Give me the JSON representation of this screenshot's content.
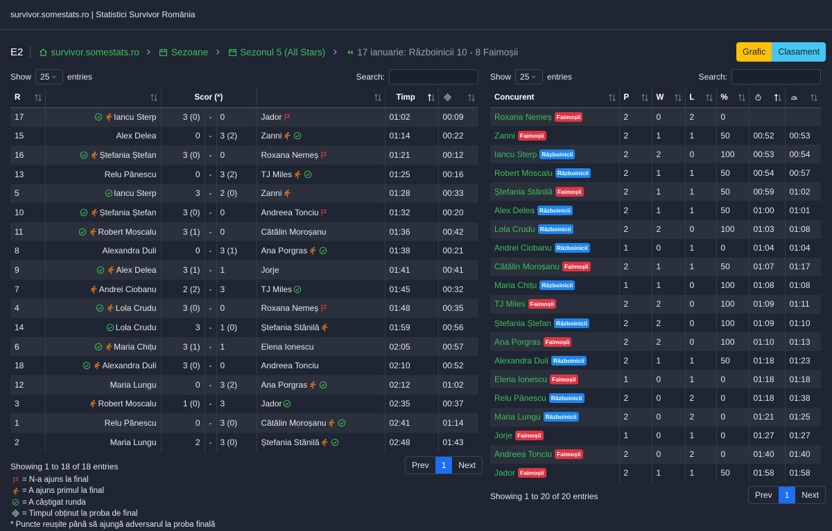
{
  "header": {
    "title": "survivor.somestats.ro | Statistici Survivor România"
  },
  "breadcrumb": {
    "episode": "E2",
    "items": [
      "survivor.somestats.ro",
      "Sezoane",
      "Sezonul 5 (All Stars)",
      "17 ianuarie: Războinicii 10 - 8 Faimoșii"
    ]
  },
  "buttons": [
    "Grafic",
    "Clasament"
  ],
  "duels": {
    "show": "Show",
    "length": "25",
    "entries": "entries",
    "search": "Search:",
    "columns": {
      "r": "R",
      "score": "Scor (*)",
      "time": "Timp"
    },
    "separator": "-",
    "rows": [
      [
        17,
        "Iancu Sterp",
        "3 (0)",
        "0",
        "Jador",
        "01:02",
        "00:09"
      ],
      [
        15,
        "Alex Delea",
        "0",
        "3 (2)",
        "Zanni",
        "01:14",
        "00:22"
      ],
      [
        16,
        "Ștefania Ștefan",
        "3 (0)",
        "0",
        "Roxana Nemeș",
        "01:21",
        "00:12"
      ],
      [
        13,
        "Relu Pănescu",
        "0",
        "3 (2)",
        "TJ Miles",
        "01:25",
        "00:16"
      ],
      [
        5,
        "Iancu Sterp",
        "3",
        "2 (0)",
        "Zanni",
        "01:28",
        "00:33"
      ],
      [
        10,
        "Ștefania Ștefan",
        "3 (0)",
        "0",
        "Andreea Tonciu",
        "01:32",
        "00:20"
      ],
      [
        11,
        "Robert Moscalu",
        "3 (1)",
        "0",
        "Cătălin Moroșanu",
        "01:36",
        "00:42"
      ],
      [
        8,
        "Alexandra Duli",
        "0",
        "3 (1)",
        "Ana Porgras",
        "01:38",
        "00:21"
      ],
      [
        9,
        "Alex Delea",
        "3 (1)",
        "1",
        "Jorje",
        "01:41",
        "00:41"
      ],
      [
        7,
        "Andrei Ciobanu",
        "2 (2)",
        "3",
        "TJ Miles",
        "01:45",
        "00:32"
      ],
      [
        4,
        "Lola Crudu",
        "3 (0)",
        "0",
        "Roxana Nemeș",
        "01:48",
        "00:35"
      ],
      [
        14,
        "Lola Crudu",
        "3",
        "1 (0)",
        "Ștefania Stănilă",
        "01:59",
        "00:56"
      ],
      [
        6,
        "Maria Chițu",
        "3 (1)",
        "1",
        "Elena Ionescu",
        "02:05",
        "00:57"
      ],
      [
        18,
        "Alexandra Duli",
        "3 (0)",
        "0",
        "Andreea Tonciu",
        "02:10",
        "00:52"
      ],
      [
        12,
        "Maria Lungu",
        "0",
        "3 (2)",
        "Ana Porgras",
        "02:12",
        "01:02"
      ],
      [
        3,
        "Robert Moscalu",
        "1 (0)",
        "3",
        "Jador",
        "02:35",
        "00:37"
      ],
      [
        1,
        "Relu Pănescu",
        "0",
        "3 (0)",
        "Cătălin Moroșanu",
        "02:41",
        "01:14"
      ],
      [
        2,
        "Maria Lungu",
        "2",
        "3 (0)",
        "Ștefania Stănilă",
        "02:48",
        "01:43"
      ]
    ],
    "info": "Showing 1 to 18 of 18 entries",
    "pagination": [
      "Prev",
      "1",
      "Next"
    ],
    "legend": [
      "= N-a ajuns la final",
      "= A ajuns primul la final",
      "= A câștigat runda",
      "= Timpul obținut la proba de final"
    ],
    "note": "* Puncte reușite până să ajungă adversarul la proba finală"
  },
  "standings": {
    "show": "Show",
    "length": "25",
    "entries": "entries",
    "search": "Search:",
    "columns": [
      "Concurent",
      "P",
      "W",
      "L",
      "%"
    ],
    "badge_colors": {
      "Faimoșii": "#dc3545",
      "Războinicii": "#1c86ee"
    },
    "rows": [
      [
        "Roxana Nemeș",
        "Faimoșii",
        2,
        0,
        2,
        0,
        null,
        null
      ],
      [
        "Zanni",
        "Faimoșii",
        2,
        1,
        1,
        50,
        "00:52",
        "00:53"
      ],
      [
        "Iancu Sterp",
        "Războinicii",
        2,
        2,
        0,
        100,
        "00:53",
        "00:54"
      ],
      [
        "Robert Moscalu",
        "Războinicii",
        2,
        1,
        1,
        50,
        "00:54",
        "00:57"
      ],
      [
        "Ștefania Stănilă",
        "Faimoșii",
        2,
        1,
        1,
        50,
        "00:59",
        "01:02"
      ],
      [
        "Alex Delea",
        "Războinicii",
        2,
        1,
        1,
        50,
        "01:00",
        "01:01"
      ],
      [
        "Lola Crudu",
        "Războinicii",
        2,
        2,
        0,
        100,
        "01:03",
        "01:08"
      ],
      [
        "Andrei Ciobanu",
        "Războinicii",
        1,
        0,
        1,
        0,
        "01:04",
        "01:04"
      ],
      [
        "Cătălin Moroșanu",
        "Faimoșii",
        2,
        1,
        1,
        50,
        "01:07",
        "01:17"
      ],
      [
        "Maria Chițu",
        "Războinicii",
        1,
        1,
        0,
        100,
        "01:08",
        "01:08"
      ],
      [
        "TJ Miles",
        "Faimoșii",
        2,
        2,
        0,
        100,
        "01:09",
        "01:11"
      ],
      [
        "Ștefania Ștefan",
        "Războinicii",
        2,
        2,
        0,
        100,
        "01:09",
        "01:10"
      ],
      [
        "Ana Porgras",
        "Faimoșii",
        2,
        2,
        0,
        100,
        "01:10",
        "01:13"
      ],
      [
        "Alexandra Duli",
        "Războinicii",
        2,
        1,
        1,
        50,
        "01:18",
        "01:23"
      ],
      [
        "Elena Ionescu",
        "Faimoșii",
        1,
        0,
        1,
        0,
        "01:18",
        "01:18"
      ],
      [
        "Relu Pănescu",
        "Războinicii",
        2,
        0,
        2,
        0,
        "01:18",
        "01:38"
      ],
      [
        "Maria Lungu",
        "Războinicii",
        2,
        0,
        2,
        0,
        "01:21",
        "01:25"
      ],
      [
        "Jorje",
        "Faimoșii",
        1,
        0,
        1,
        0,
        "01:27",
        "01:27"
      ],
      [
        "Andreea Tonciu",
        "Faimoșii",
        2,
        0,
        2,
        0,
        "01:40",
        "01:40"
      ],
      [
        "Jador",
        "Faimoșii",
        2,
        1,
        1,
        50,
        "01:58",
        "01:58"
      ]
    ],
    "info": "Showing 1 to 20 of 20 entries",
    "pagination": [
      "Prev",
      "1",
      "Next"
    ]
  }
}
